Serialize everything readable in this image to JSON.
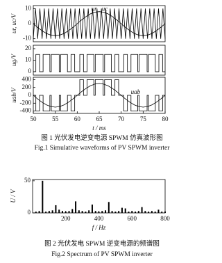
{
  "chart_data": [
    {
      "type": "line",
      "ylabel": "ur, uc/V",
      "xlim": [
        50,
        80
      ],
      "ylim": [
        -12,
        12
      ],
      "yticks": [
        -10,
        0,
        10
      ],
      "series": [
        {
          "name": "ur",
          "color": "#000000",
          "x": [
            50,
            51,
            52,
            53,
            54,
            55,
            56,
            57,
            58,
            59,
            60,
            61,
            62,
            63,
            64,
            65,
            66,
            67,
            68,
            69,
            70,
            71,
            72,
            73,
            74,
            75,
            76,
            77,
            78,
            79,
            80
          ],
          "values": [
            0,
            -2.5,
            -4.7,
            -6.5,
            -7.6,
            -8,
            -7.6,
            -6.5,
            -4.7,
            -2.5,
            0,
            2.5,
            4.7,
            6.5,
            7.6,
            8,
            7.6,
            6.5,
            4.7,
            2.5,
            0,
            -2.5,
            -4.7,
            -6.5,
            -7.6,
            -8,
            -7.6,
            -6.5,
            -4.7,
            -2.5,
            0
          ]
        },
        {
          "name": "uc",
          "color": "#000000",
          "x": [
            50,
            50.5,
            51,
            51.5,
            52,
            52.5,
            53,
            53.5,
            54,
            54.5,
            55,
            55.5,
            56,
            56.5,
            57,
            57.5,
            58,
            58.5,
            59,
            59.5,
            60,
            60.5,
            61,
            61.5,
            62,
            62.5,
            63,
            63.5,
            64,
            64.5,
            65,
            65.5,
            66,
            66.5,
            67,
            67.5,
            68,
            68.5,
            69,
            69.5,
            70,
            70.5,
            71,
            71.5,
            72,
            72.5,
            73,
            73.5,
            74,
            74.5,
            75,
            75.5,
            76,
            76.5,
            77,
            77.5,
            78,
            78.5,
            79,
            79.5,
            80
          ],
          "values": [
            -10,
            10,
            -10,
            10,
            -10,
            10,
            -10,
            10,
            -10,
            10,
            -10,
            10,
            -10,
            10,
            -10,
            10,
            -10,
            10,
            -10,
            10,
            -10,
            10,
            -10,
            10,
            -10,
            10,
            -10,
            10,
            -10,
            10,
            -10,
            10,
            -10,
            10,
            -10,
            10,
            -10,
            10,
            -10,
            10,
            -10,
            10,
            -10,
            10,
            -10,
            10,
            -10,
            10,
            -10,
            10,
            -10,
            10,
            -10,
            10,
            -10,
            10,
            -10,
            10,
            -10,
            10,
            -10
          ]
        }
      ]
    },
    {
      "type": "line",
      "ylabel": "ug/V",
      "xlim": [
        50,
        80
      ],
      "ylim": [
        -3,
        23
      ],
      "yticks": [
        0,
        10,
        20
      ],
      "series": [
        {
          "color": "#000000",
          "x": [
            50,
            50.58,
            50.58,
            51.42,
            51.42,
            52.23,
            52.23,
            53.77,
            53.77,
            54.1,
            54.1,
            55.9,
            55.9,
            56.23,
            56.23,
            57.77,
            57.77,
            58.58,
            58.58,
            59.42,
            59.42,
            60.58,
            60.58,
            61.42,
            61.42,
            62.23,
            62.23,
            63.77,
            63.77,
            64.1,
            64.1,
            65.9,
            65.9,
            66.23,
            66.23,
            67.77,
            67.77,
            68.58,
            68.58,
            69.42,
            69.42,
            70.58,
            70.58,
            71.42,
            71.42,
            72.23,
            72.23,
            73.77,
            73.77,
            74.1,
            74.1,
            75.9,
            75.9,
            76.23,
            76.23,
            77.77,
            77.77,
            78.58,
            78.58,
            79.42,
            79.42,
            80
          ],
          "values": [
            0,
            0,
            15,
            15,
            0,
            0,
            15,
            15,
            0,
            0,
            15,
            15,
            0,
            0,
            15,
            15,
            0,
            0,
            15,
            15,
            0,
            0,
            15,
            15,
            0,
            0,
            15,
            15,
            0,
            0,
            15,
            15,
            0,
            0,
            15,
            15,
            0,
            0,
            15,
            15,
            0,
            0,
            15,
            15,
            0,
            0,
            15,
            15,
            0,
            0,
            15,
            15,
            0,
            0,
            15,
            15,
            0,
            0,
            15,
            15,
            0,
            0
          ]
        }
      ]
    },
    {
      "type": "line",
      "ylabel": "uab/V",
      "xlabel": "t / ms",
      "xlim": [
        50,
        80
      ],
      "xticks": [
        50,
        55,
        60,
        65,
        70,
        75,
        80
      ],
      "ylim": [
        -460,
        460
      ],
      "yticks": [
        -400,
        -200,
        0,
        200,
        400
      ],
      "series": [
        {
          "color": "#000000",
          "x": [
            50,
            50.58,
            50.58,
            51.42,
            51.42,
            52.23,
            52.23,
            53.77,
            53.77,
            54.1,
            54.1,
            55.9,
            55.9,
            56.23,
            56.23,
            57.77,
            57.77,
            58.58,
            58.58,
            59.42,
            59.42,
            60.58,
            60.58,
            61.42,
            61.42,
            62.23,
            62.23,
            63.77,
            63.77,
            64.1,
            64.1,
            65.9,
            65.9,
            66.23,
            66.23,
            67.77,
            67.77,
            68.58,
            68.58,
            69.42,
            69.42,
            70.58,
            70.58,
            71.42,
            71.42,
            72.23,
            72.23,
            73.77,
            73.77,
            74.1,
            74.1,
            75.9,
            75.9,
            76.23,
            76.23,
            77.77,
            77.77,
            78.58,
            78.58,
            79.42,
            79.42,
            80
          ],
          "values": [
            0,
            0,
            -400,
            -400,
            0,
            0,
            -400,
            -400,
            0,
            0,
            -400,
            -400,
            0,
            0,
            -400,
            -400,
            0,
            0,
            -400,
            -400,
            0,
            0,
            400,
            400,
            0,
            0,
            400,
            400,
            0,
            0,
            400,
            400,
            0,
            0,
            400,
            400,
            0,
            0,
            400,
            400,
            0,
            0,
            -400,
            -400,
            0,
            0,
            -400,
            -400,
            0,
            0,
            -400,
            -400,
            0,
            0,
            -400,
            -400,
            0,
            0,
            -400,
            -400,
            0,
            0
          ]
        },
        {
          "name": "uab",
          "color": "#000000",
          "x": [
            50,
            51,
            52,
            53,
            54,
            55,
            56,
            57,
            58,
            59,
            60,
            61,
            62,
            63,
            64,
            65,
            66,
            67,
            68,
            69,
            70,
            71,
            72,
            73,
            74,
            75,
            76,
            77,
            78,
            79,
            80
          ],
          "values": [
            0,
            -93,
            -176,
            -243,
            -285,
            -300,
            -285,
            -243,
            -176,
            -93,
            0,
            93,
            176,
            243,
            285,
            300,
            285,
            243,
            176,
            93,
            0,
            -93,
            -176,
            -243,
            -285,
            -300,
            -285,
            -243,
            -176,
            -93,
            0
          ]
        }
      ]
    },
    {
      "type": "bar",
      "ylabel": "U / V",
      "xlabel": "f / Hz",
      "color": "#000000",
      "xlim": [
        0,
        800
      ],
      "xticks": [
        200,
        400,
        600,
        800
      ],
      "ylim": [
        0,
        52
      ],
      "yticks": [
        0,
        50
      ],
      "x": [
        20,
        40,
        60,
        80,
        100,
        120,
        140,
        160,
        180,
        200,
        220,
        240,
        260,
        280,
        300,
        320,
        340,
        360,
        380,
        400,
        420,
        440,
        460,
        480,
        500,
        520,
        540,
        560,
        580,
        600,
        620,
        640,
        660,
        680,
        700,
        720,
        740,
        760,
        780,
        800
      ],
      "values": [
        2,
        3,
        50,
        2,
        3,
        4,
        12,
        5,
        3,
        2,
        3,
        6,
        18,
        4,
        3,
        2,
        4,
        13,
        3,
        2,
        3,
        4,
        17,
        3,
        2,
        3,
        8,
        7,
        2,
        3,
        2,
        3,
        9,
        3,
        2,
        3,
        2,
        5,
        2,
        2
      ]
    }
  ],
  "captions": [
    {
      "cn": "图 1 光伏发电逆变电源 SPWM 仿真波形图",
      "en": "Fig.1 Simulative waveforms of PV SPWM inverter"
    },
    {
      "cn": "图 2 光伏发电 SPWM 逆变电源的频谱图",
      "en": "Fig.2 Spectrum of PV SPWM inverter"
    }
  ]
}
